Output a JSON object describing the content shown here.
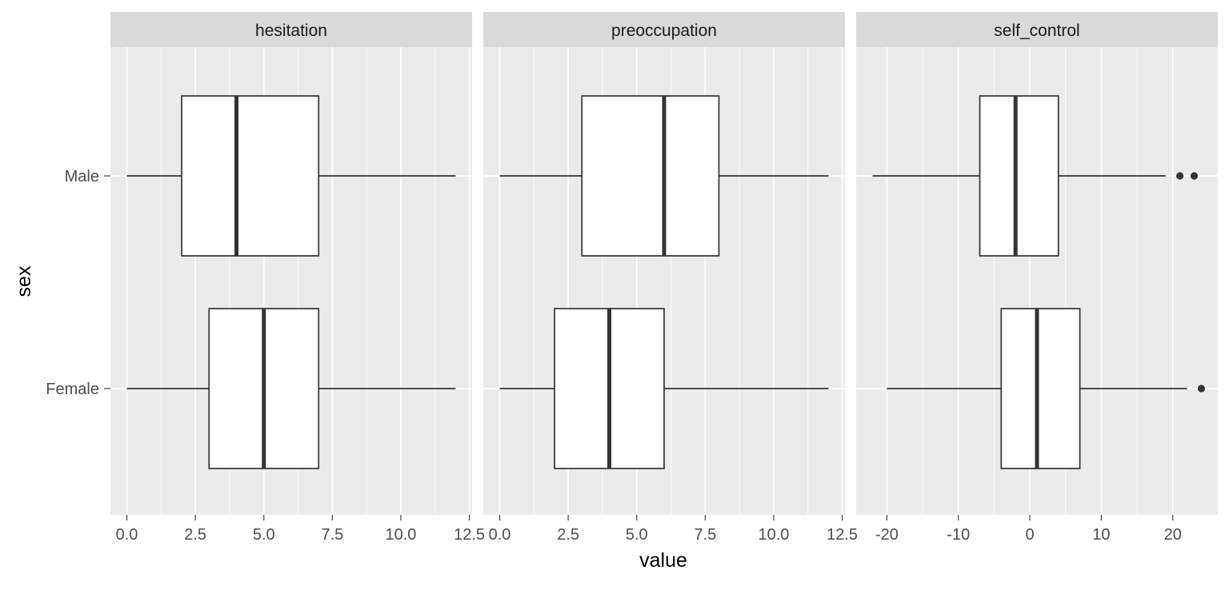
{
  "chart_data": {
    "type": "boxplot",
    "orientation": "horizontal",
    "xlabel": "value",
    "ylabel": "sex",
    "categories": [
      "Male",
      "Female"
    ],
    "colors": {
      "panel_background": "#ebebeb",
      "strip_background": "#d9d9d9",
      "grid": "#ffffff",
      "box_fill": "#ffffff",
      "box_line": "#333333"
    },
    "facets": [
      {
        "name": "hesitation",
        "xlim": [
          -0.6,
          12.6
        ],
        "ticks": [
          0,
          2.5,
          5,
          7.5,
          10,
          12.5
        ],
        "tick_labels": [
          "0.0",
          "2.5",
          "5.0",
          "7.5",
          "10.0",
          "12.5"
        ],
        "boxes": [
          {
            "group": "Male",
            "min": 0,
            "q1": 2,
            "median": 4,
            "q3": 7,
            "max": 12,
            "outliers": []
          },
          {
            "group": "Female",
            "min": 0,
            "q1": 3,
            "median": 5,
            "q3": 7,
            "max": 12,
            "outliers": []
          }
        ]
      },
      {
        "name": "preoccupation",
        "xlim": [
          -0.6,
          12.6
        ],
        "ticks": [
          0,
          2.5,
          5,
          7.5,
          10,
          12.5
        ],
        "tick_labels": [
          "0.0",
          "2.5",
          "5.0",
          "7.5",
          "10.0",
          "12.5"
        ],
        "boxes": [
          {
            "group": "Male",
            "min": 0,
            "q1": 3,
            "median": 6,
            "q3": 8,
            "max": 12,
            "outliers": []
          },
          {
            "group": "Female",
            "min": 0,
            "q1": 2,
            "median": 4,
            "q3": 6,
            "max": 12,
            "outliers": []
          }
        ]
      },
      {
        "name": "self_control",
        "xlim": [
          -24.3,
          26.3
        ],
        "ticks": [
          -20,
          -10,
          0,
          10,
          20
        ],
        "tick_labels": [
          "-20",
          "-10",
          "0",
          "10",
          "20"
        ],
        "boxes": [
          {
            "group": "Male",
            "min": -22,
            "q1": -7,
            "median": -2,
            "q3": 4,
            "max": 19,
            "outliers": [
              21,
              23
            ]
          },
          {
            "group": "Female",
            "min": -20,
            "q1": -4,
            "median": 1,
            "q3": 7,
            "max": 22,
            "outliers": [
              24
            ]
          }
        ]
      }
    ]
  }
}
